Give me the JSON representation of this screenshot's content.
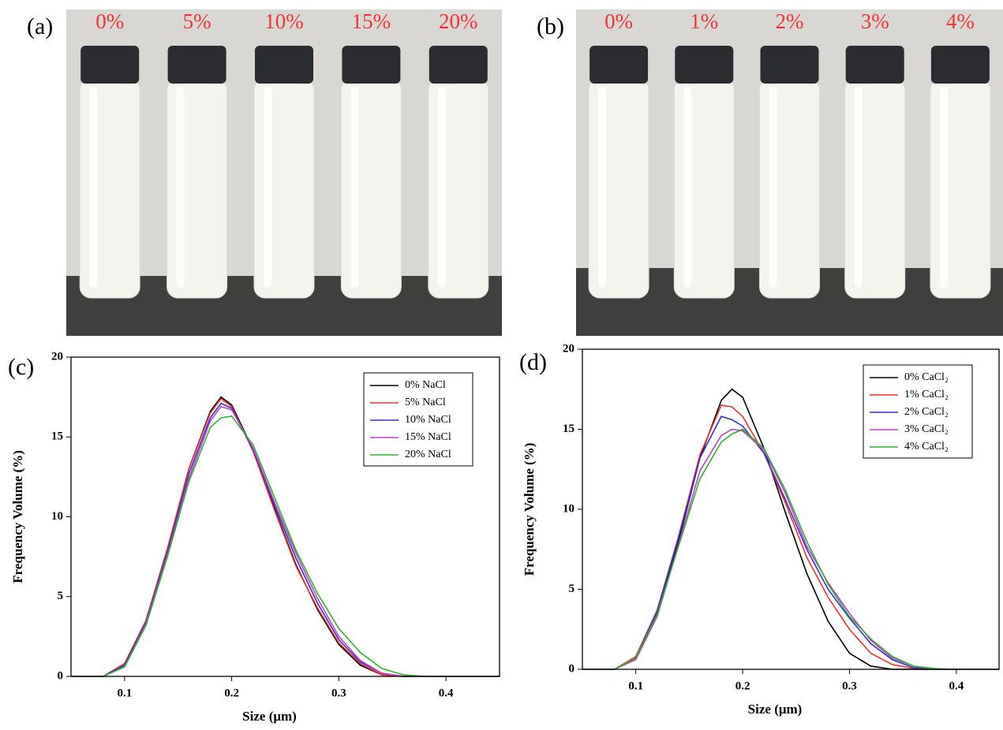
{
  "photos": [
    {
      "label": "(a)",
      "tags": [
        "0%",
        "5%",
        "10%",
        "15%",
        "20%"
      ]
    },
    {
      "label": "(b)",
      "tags": [
        "0%",
        "1%",
        "2%",
        "3%",
        "4%"
      ]
    }
  ],
  "chart_data": [
    {
      "type": "line",
      "panel_label": "(c)",
      "x_label": "Size (μm)",
      "y_label": "Frequency Volume (%)",
      "xlim": [
        0.05,
        0.45
      ],
      "ylim": [
        0,
        20
      ],
      "xticks": [
        0.1,
        0.2,
        0.3,
        0.4
      ],
      "yticks": [
        0,
        5,
        10,
        15,
        20
      ],
      "legend": "upper right",
      "x": [
        0.05,
        0.08,
        0.1,
        0.12,
        0.14,
        0.16,
        0.18,
        0.19,
        0.2,
        0.22,
        0.24,
        0.26,
        0.28,
        0.3,
        0.32,
        0.34,
        0.36,
        0.38,
        0.4,
        0.45
      ],
      "series": [
        {
          "name": "0%   NaCl",
          "color": "#000000",
          "values": [
            0,
            0,
            0.8,
            3.5,
            8.0,
            13.0,
            16.6,
            17.5,
            17.0,
            14.2,
            10.5,
            7.0,
            4.2,
            2.0,
            0.7,
            0.1,
            0,
            0,
            0,
            0
          ]
        },
        {
          "name": "5%   NaCl",
          "color": "#f03030",
          "values": [
            0,
            0,
            0.8,
            3.5,
            8.0,
            13.0,
            16.5,
            17.4,
            16.9,
            14.1,
            10.4,
            6.9,
            4.3,
            2.1,
            0.8,
            0.1,
            0,
            0,
            0,
            0
          ]
        },
        {
          "name": "10% NaCl",
          "color": "#3232c8",
          "values": [
            0,
            0,
            0.7,
            3.4,
            7.8,
            12.7,
            16.2,
            17.1,
            16.8,
            14.2,
            10.7,
            7.4,
            4.6,
            2.3,
            0.9,
            0.2,
            0,
            0,
            0,
            0
          ]
        },
        {
          "name": "15% NaCl",
          "color": "#c040c0",
          "values": [
            0,
            0,
            0.6,
            3.3,
            7.6,
            12.4,
            16.0,
            16.9,
            16.7,
            14.3,
            10.9,
            7.7,
            4.9,
            2.5,
            1.0,
            0.2,
            0,
            0,
            0,
            0
          ]
        },
        {
          "name": "20% NaCl",
          "color": "#30b030",
          "values": [
            0,
            0,
            0.6,
            3.2,
            7.5,
            12.2,
            15.6,
            16.2,
            16.3,
            14.5,
            11.2,
            7.9,
            5.2,
            3.0,
            1.5,
            0.5,
            0.1,
            0,
            0,
            0
          ]
        }
      ]
    },
    {
      "type": "line",
      "panel_label": "(d)",
      "x_label": "Size (μm)",
      "y_label": "Frequency Volume (%)",
      "xlim": [
        0.05,
        0.44
      ],
      "ylim": [
        0,
        20
      ],
      "xticks": [
        0.1,
        0.2,
        0.3,
        0.4
      ],
      "yticks": [
        0,
        5,
        10,
        15,
        20
      ],
      "legend": "upper right",
      "x": [
        0.05,
        0.08,
        0.1,
        0.12,
        0.14,
        0.16,
        0.18,
        0.19,
        0.2,
        0.22,
        0.24,
        0.26,
        0.28,
        0.3,
        0.32,
        0.34,
        0.36,
        0.38,
        0.4,
        0.44
      ],
      "series": [
        {
          "name": "0% CaCl₂",
          "color": "#000000",
          "values": [
            0,
            0,
            0.7,
            3.5,
            8.0,
            13.2,
            16.8,
            17.5,
            17.0,
            13.8,
            9.8,
            6.0,
            3.0,
            1.0,
            0.2,
            0,
            0,
            0,
            0,
            0
          ]
        },
        {
          "name": "1% CaCl₂",
          "color": "#f03030",
          "values": [
            0,
            0,
            0.8,
            3.7,
            8.3,
            13.4,
            16.5,
            16.4,
            15.8,
            13.5,
            10.4,
            7.0,
            4.5,
            2.5,
            1.0,
            0.3,
            0.05,
            0,
            0,
            0
          ]
        },
        {
          "name": "2% CaCl₂",
          "color": "#3232c8",
          "values": [
            0,
            0,
            0.7,
            3.6,
            8.2,
            13.2,
            15.8,
            15.6,
            15.2,
            13.5,
            10.6,
            7.5,
            5.0,
            3.2,
            1.6,
            0.6,
            0.1,
            0,
            0,
            0
          ]
        },
        {
          "name": "3% CaCl₂",
          "color": "#c040c0",
          "values": [
            0,
            0,
            0.6,
            3.3,
            7.8,
            12.4,
            14.6,
            15.0,
            14.9,
            13.7,
            11.0,
            7.7,
            5.4,
            3.5,
            1.8,
            0.7,
            0.2,
            0,
            0,
            0
          ]
        },
        {
          "name": "4% CaCl₂",
          "color": "#30b030",
          "values": [
            0,
            0,
            0.7,
            3.4,
            7.7,
            11.9,
            14.2,
            14.7,
            15.0,
            13.8,
            11.2,
            8.0,
            5.3,
            3.3,
            1.9,
            0.8,
            0.2,
            0.05,
            0,
            0
          ]
        }
      ]
    }
  ]
}
